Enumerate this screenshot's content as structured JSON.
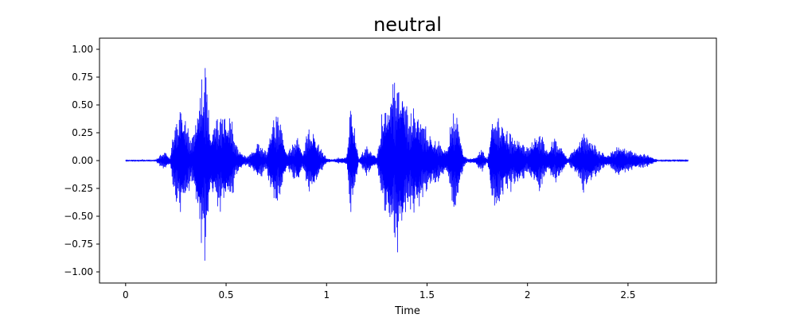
{
  "chart_data": {
    "type": "line",
    "title": "neutral",
    "xlabel": "Time",
    "ylabel": "",
    "xlim": [
      -0.13,
      2.94
    ],
    "ylim": [
      -1.1,
      1.1
    ],
    "x_ticks": [
      0,
      0.5,
      1,
      1.5,
      2,
      2.5
    ],
    "x_tick_labels": [
      "0",
      "0.5",
      "1",
      "1.5",
      "2",
      "2.5"
    ],
    "y_ticks": [
      -1.0,
      -0.75,
      -0.5,
      -0.25,
      0.0,
      0.25,
      0.5,
      0.75,
      1.0
    ],
    "y_tick_labels": [
      "−1.00",
      "−0.75",
      "−0.50",
      "−0.25",
      "0.00",
      "0.25",
      "0.50",
      "0.75",
      "1.00"
    ],
    "grid": false,
    "series": [
      {
        "color": "#0000ff",
        "duration": 2.8,
        "envelope_t": [
          0,
          0.15,
          0.17,
          0.2,
          0.22,
          0.25,
          0.28,
          0.3,
          0.33,
          0.35,
          0.37,
          0.4,
          0.42,
          0.45,
          0.48,
          0.5,
          0.53,
          0.55,
          0.6,
          0.63,
          0.66,
          0.7,
          0.72,
          0.75,
          0.78,
          0.8,
          0.83,
          0.86,
          0.88,
          0.91,
          0.94,
          0.97,
          1.0,
          1.03,
          1.06,
          1.1,
          1.12,
          1.14,
          1.16,
          1.2,
          1.25,
          1.28,
          1.3,
          1.33,
          1.35,
          1.38,
          1.4,
          1.45,
          1.5,
          1.55,
          1.6,
          1.62,
          1.65,
          1.68,
          1.7,
          1.74,
          1.77,
          1.8,
          1.83,
          1.86,
          1.9,
          1.95,
          2.0,
          2.05,
          2.07,
          2.1,
          2.13,
          2.17,
          2.2,
          2.24,
          2.28,
          2.32,
          2.36,
          2.4,
          2.45,
          2.5,
          2.55,
          2.6,
          2.65,
          2.7,
          2.8
        ],
        "envelope_a": [
          0.008,
          0.008,
          0.06,
          0.1,
          0.03,
          0.46,
          0.55,
          0.42,
          0.2,
          0.5,
          0.75,
          1.0,
          0.35,
          0.45,
          0.5,
          0.48,
          0.4,
          0.15,
          0.04,
          0.1,
          0.2,
          0.08,
          0.35,
          0.48,
          0.32,
          0.08,
          0.15,
          0.25,
          0.07,
          0.32,
          0.3,
          0.12,
          0.03,
          0.01,
          0.03,
          0.04,
          0.6,
          0.35,
          0.02,
          0.15,
          0.04,
          0.55,
          0.62,
          0.8,
          0.9,
          0.82,
          0.5,
          0.55,
          0.3,
          0.22,
          0.12,
          0.45,
          0.5,
          0.08,
          0.02,
          0.03,
          0.12,
          0.02,
          0.52,
          0.45,
          0.3,
          0.25,
          0.14,
          0.32,
          0.25,
          0.1,
          0.22,
          0.16,
          0.02,
          0.15,
          0.3,
          0.22,
          0.1,
          0.06,
          0.16,
          0.12,
          0.08,
          0.06,
          0.005,
          0.004,
          0.004
        ]
      }
    ]
  }
}
